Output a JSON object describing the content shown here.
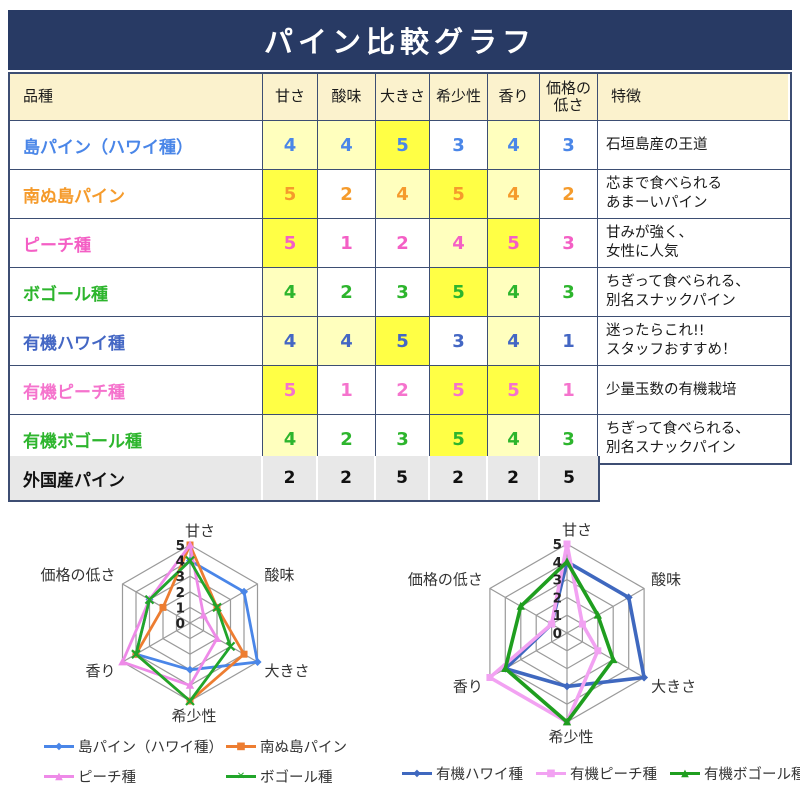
{
  "title": "パイン比較グラフ",
  "colors": {
    "title_bg": "#283a64",
    "header_cell_bg": "#fbf2cd",
    "border": "#3d4e73",
    "highlight_5": "#ffff45",
    "highlight_4": "#ffffbe",
    "summary_bg": "#e8e8e8",
    "grid": "#9a9a9a"
  },
  "table": {
    "headers": [
      "品種",
      "甘さ",
      "酸味",
      "大きさ",
      "希少性",
      "香り",
      "価格の低さ",
      "特徴"
    ],
    "rows": [
      {
        "name": "島パイン（ハワイ種）",
        "color": "#4a86e8",
        "values": [
          4,
          4,
          5,
          3,
          4,
          3
        ],
        "feature": "石垣島産の王道"
      },
      {
        "name": "南ぬ島パイン",
        "color": "#f59b2c",
        "values": [
          5,
          2,
          4,
          5,
          4,
          2
        ],
        "feature": "芯まで食べられる\nあまーいパイン"
      },
      {
        "name": "ピーチ種",
        "color": "#f45fc5",
        "values": [
          5,
          1,
          2,
          4,
          5,
          3
        ],
        "feature": "甘みが強く、\n女性に人気"
      },
      {
        "name": "ボゴール種",
        "color": "#2db52d",
        "values": [
          4,
          2,
          3,
          5,
          4,
          3
        ],
        "feature": "ちぎって食べられる、\n別名スナックパイン"
      },
      {
        "name": "有機ハワイ種",
        "color": "#4467c4",
        "values": [
          4,
          4,
          5,
          3,
          4,
          1
        ],
        "feature": "迷ったらこれ!!\nスタッフおすすめ！"
      },
      {
        "name": "有機ピーチ種",
        "color": "#f573cd",
        "values": [
          5,
          1,
          2,
          5,
          5,
          1
        ],
        "feature": "少量玉数の有機栽培"
      },
      {
        "name": "有機ボゴール種",
        "color": "#2db52d",
        "values": [
          4,
          2,
          3,
          5,
          4,
          3
        ],
        "feature": "ちぎって食べられる、\n別名スナックパイン"
      }
    ],
    "summary_row": {
      "name": "外国産パイン",
      "color": "#111111",
      "values": [
        2,
        2,
        5,
        2,
        2,
        5
      ],
      "feature": ""
    }
  },
  "chart_data": [
    {
      "type": "radar",
      "position": "left",
      "axes": [
        "甘さ",
        "酸味",
        "大きさ",
        "希少性",
        "香り",
        "価格の低さ"
      ],
      "range": [
        0,
        5
      ],
      "ticks": [
        "5",
        "4",
        "3",
        "2",
        "1",
        "0"
      ],
      "grid": true,
      "legend_position": "bottom",
      "series": [
        {
          "name": "島パイン（ハワイ種）",
          "color": "#4a86e8",
          "marker": "diamond",
          "values": [
            4,
            4,
            5,
            3,
            4,
            3
          ]
        },
        {
          "name": "南ぬ島パイン",
          "color": "#ed7d31",
          "marker": "square",
          "values": [
            5,
            2,
            4,
            5,
            4,
            2
          ]
        },
        {
          "name": "ピーチ種",
          "color": "#ee8ae8",
          "marker": "triangle",
          "values": [
            5,
            1,
            2,
            4,
            5,
            3
          ]
        },
        {
          "name": "ボゴール種",
          "color": "#21a52a",
          "marker": "x",
          "values": [
            4,
            2,
            3,
            5,
            4,
            3
          ]
        }
      ]
    },
    {
      "type": "radar",
      "position": "right",
      "axes": [
        "甘さ",
        "酸味",
        "大きさ",
        "希少性",
        "香り",
        "価格の低さ"
      ],
      "range": [
        0,
        5
      ],
      "ticks": [
        "5",
        "4",
        "3",
        "2",
        "1",
        "0"
      ],
      "grid": true,
      "legend_position": "bottom",
      "series": [
        {
          "name": "有機ハワイ種",
          "color": "#3f68bf",
          "marker": "diamond",
          "values": [
            4,
            4,
            5,
            3,
            4,
            1
          ]
        },
        {
          "name": "有機ピーチ種",
          "color": "#f2a2f2",
          "marker": "square",
          "values": [
            5,
            1,
            2,
            5,
            5,
            1
          ]
        },
        {
          "name": "有機ボゴール種",
          "color": "#1f9e1f",
          "marker": "triangle",
          "values": [
            4,
            2,
            3,
            5,
            4,
            3
          ]
        }
      ]
    }
  ]
}
